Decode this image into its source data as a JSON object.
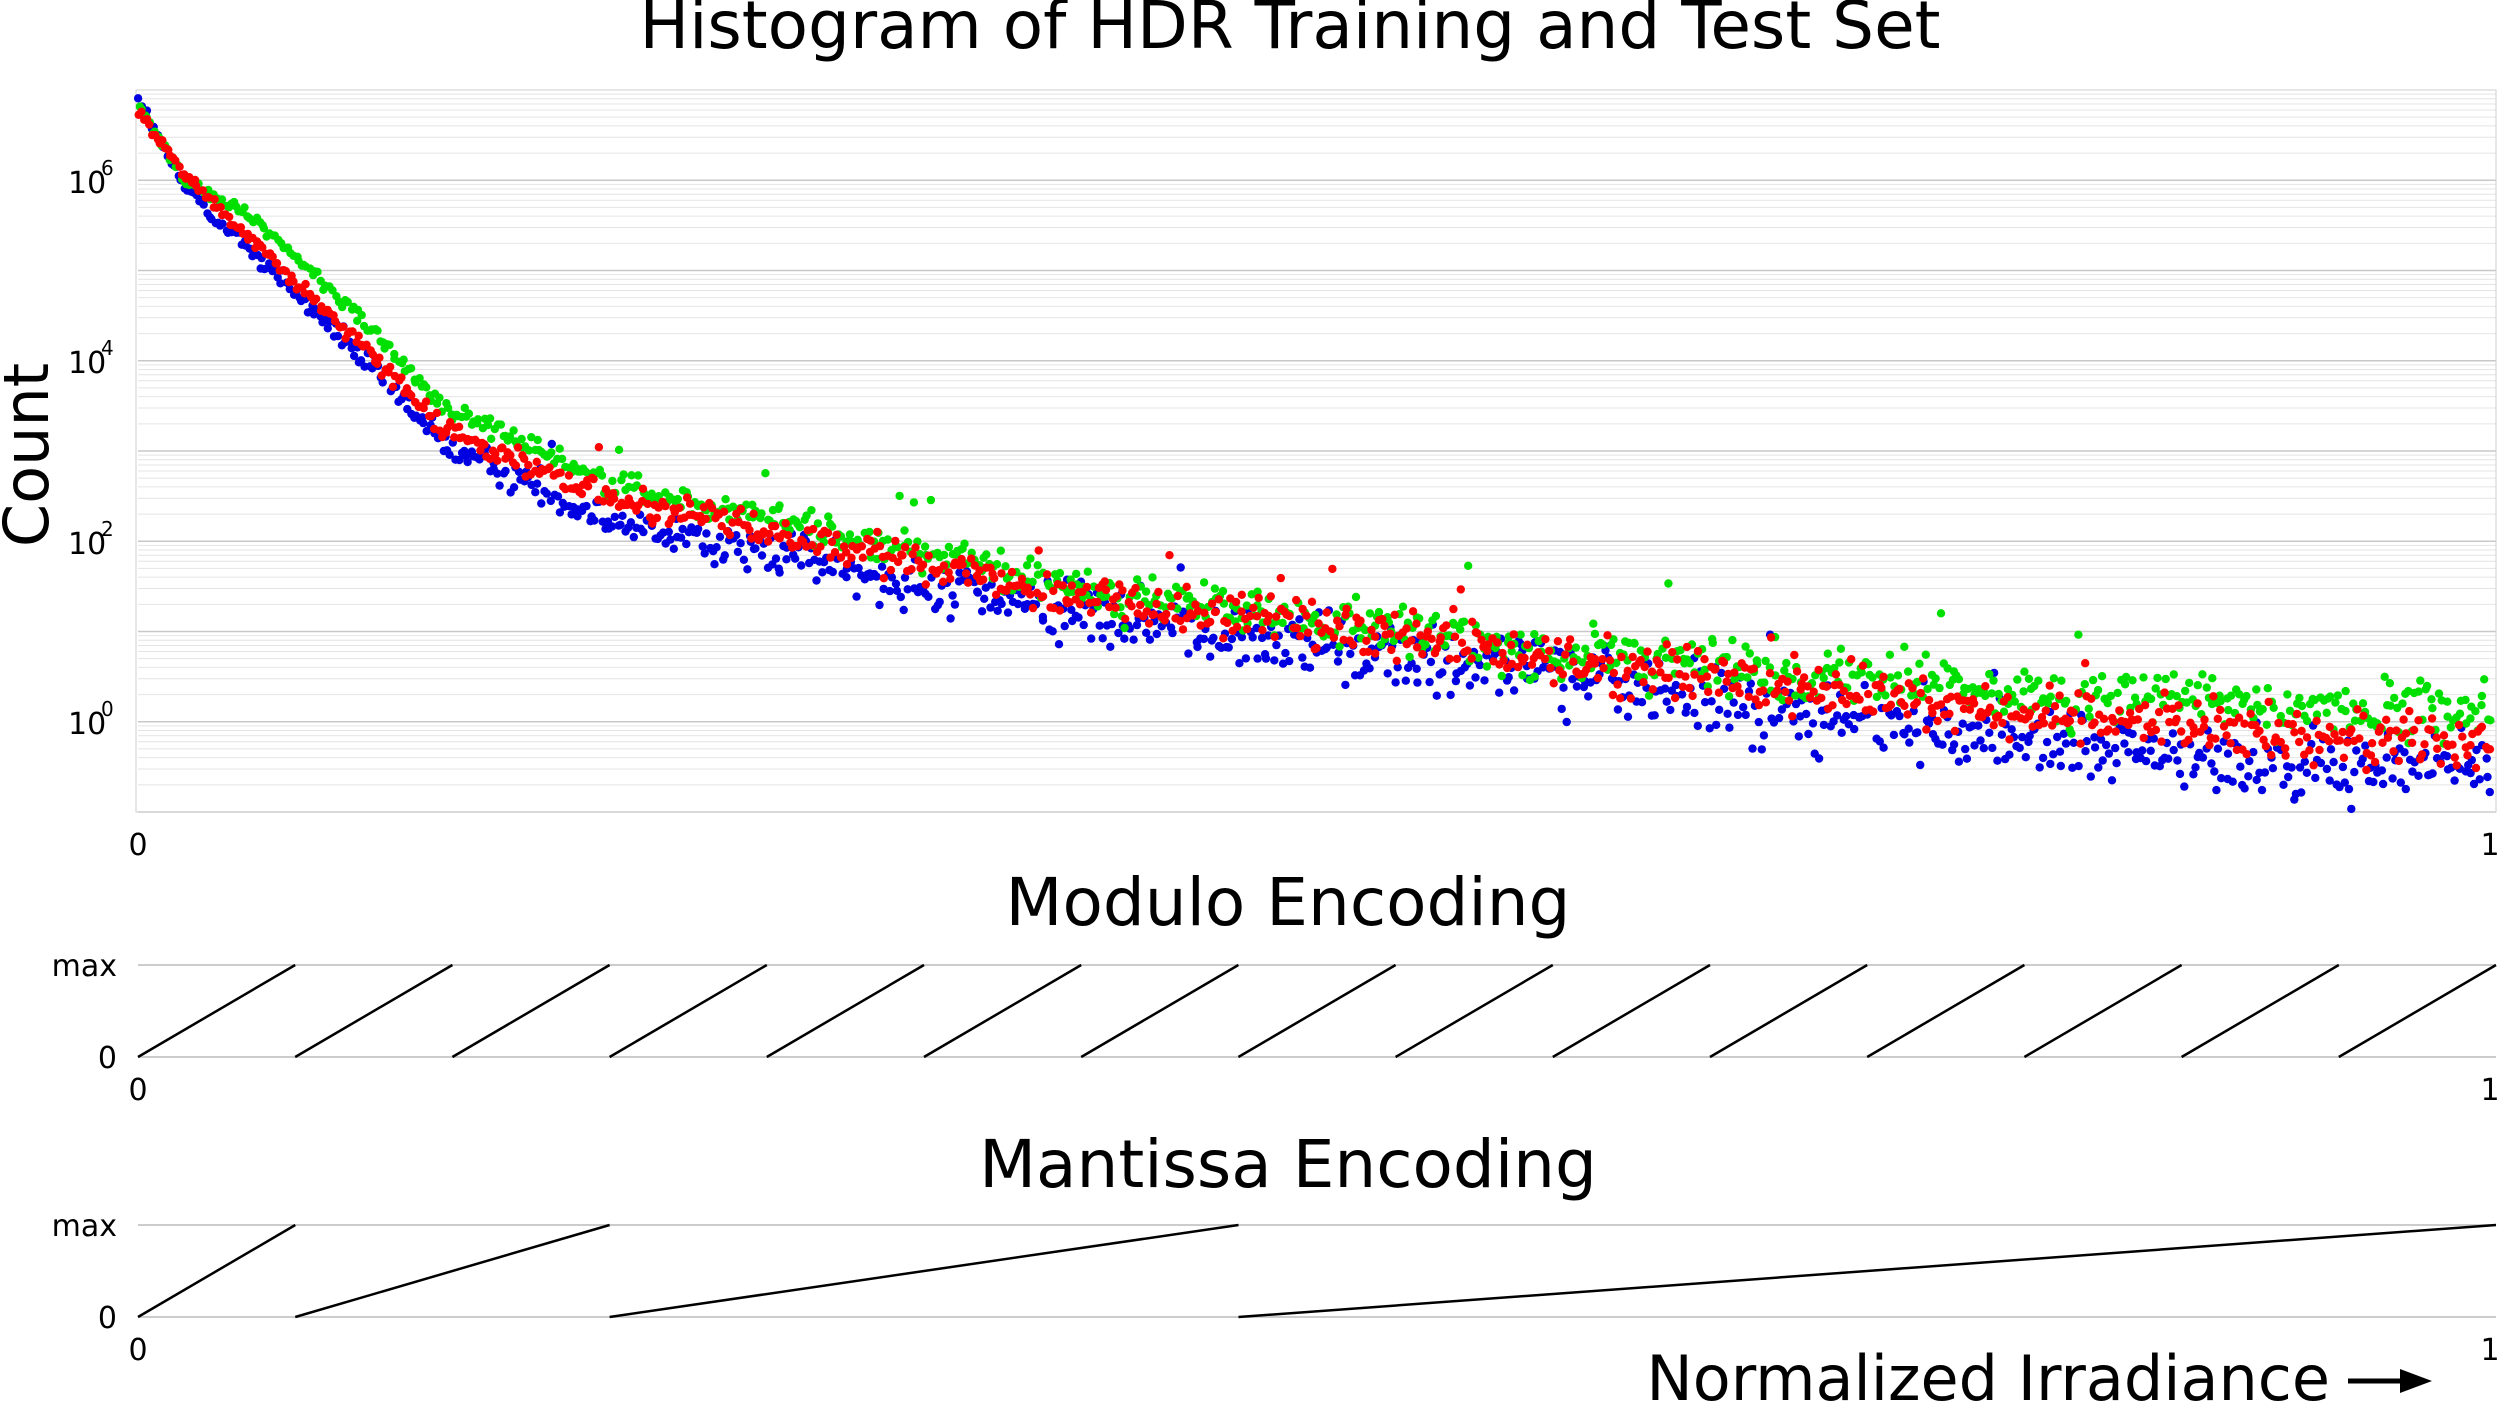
{
  "chart_data": [
    {
      "type": "scatter",
      "title": "Histogram of HDR Training and Test Set",
      "ylabel": "Count",
      "x_ticks": [
        "0",
        "1"
      ],
      "xlim": [
        0,
        1
      ],
      "y_scale": "log",
      "ylim": [
        0.1,
        10000000
      ],
      "y_ticks": [
        {
          "base": "10",
          "exp": "6",
          "value": 1000000
        },
        {
          "base": "10",
          "exp": "4",
          "value": 10000
        },
        {
          "base": "10",
          "exp": "2",
          "value": 100
        },
        {
          "base": "10",
          "exp": "0",
          "value": 1
        }
      ],
      "grid": true,
      "series": [
        {
          "color": "#0000e0",
          "anchors": [
            [
              0,
              8000000
            ],
            [
              0.02,
              800000
            ],
            [
              0.05,
              150000
            ],
            [
              0.09,
              15000
            ],
            [
              0.13,
              1200
            ],
            [
              0.2,
              180
            ],
            [
              0.3,
              50
            ],
            [
              0.4,
              15
            ],
            [
              0.5,
              7
            ],
            [
              0.6,
              3.5
            ],
            [
              0.7,
              1.3
            ],
            [
              0.8,
              0.6
            ],
            [
              0.9,
              0.35
            ],
            [
              1,
              0.3
            ]
          ],
          "scatter": 0.3
        },
        {
          "color": "#00e000",
          "anchors": [
            [
              0,
              7000000
            ],
            [
              0.02,
              1000000
            ],
            [
              0.05,
              350000
            ],
            [
              0.09,
              40000
            ],
            [
              0.13,
              3000
            ],
            [
              0.2,
              450
            ],
            [
              0.3,
              120
            ],
            [
              0.4,
              30
            ],
            [
              0.5,
              13
            ],
            [
              0.6,
              6
            ],
            [
              0.7,
              3.5
            ],
            [
              0.8,
              2.2
            ],
            [
              0.9,
              1.5
            ],
            [
              1,
              1.3
            ]
          ],
          "scatter": 0.22
        },
        {
          "color": "#ff0000",
          "anchors": [
            [
              0,
              6000000
            ],
            [
              0.02,
              1100000
            ],
            [
              0.05,
              200000
            ],
            [
              0.09,
              20000
            ],
            [
              0.13,
              1800
            ],
            [
              0.2,
              300
            ],
            [
              0.3,
              90
            ],
            [
              0.4,
              25
            ],
            [
              0.5,
              11
            ],
            [
              0.6,
              5
            ],
            [
              0.7,
              2.5
            ],
            [
              0.8,
              1.3
            ],
            [
              0.9,
              0.8
            ],
            [
              1,
              0.6
            ]
          ],
          "scatter": 0.22
        }
      ]
    },
    {
      "type": "line",
      "title": "Modulo Encoding",
      "x_ticks": [
        "0",
        "1"
      ],
      "y_ticks": [
        "max",
        "0"
      ],
      "periods": 15
    },
    {
      "type": "line",
      "title": "Mantissa Encoding",
      "x_ticks": [
        "0",
        "1"
      ],
      "y_ticks": [
        "max",
        "0"
      ],
      "segment_breaks": [
        0,
        0.0667,
        0.2,
        0.4667,
        1
      ],
      "xlabel": "Normalized Irradiance"
    }
  ]
}
